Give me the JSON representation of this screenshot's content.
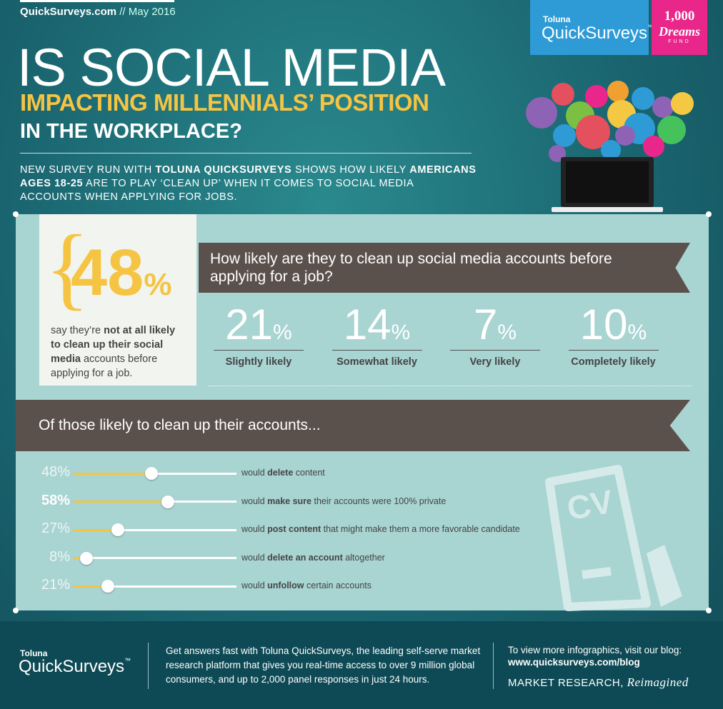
{
  "header": {
    "site": "QuickSurveys.com",
    "date": "// May 2016",
    "logo_brand": "Toluna",
    "logo_product": "QuickSurveys",
    "logo_tm": "™",
    "fund_number": "1,000",
    "fund_name": "Dreams",
    "fund_word": "FUND"
  },
  "title": {
    "line1": "IS SOCIAL MEDIA",
    "line2": "IMPACTING MILLENNIALS’ POSITION",
    "line3": "IN THE WORKPLACE?"
  },
  "intro": [
    {
      "text": "NEW SURVEY RUN WITH ",
      "bold": false
    },
    {
      "text": "TOLUNA QUICKSURVEYS",
      "bold": true
    },
    {
      "text": " SHOWS HOW LIKELY ",
      "bold": false
    },
    {
      "text": "AMERICANS AGES 18-25",
      "bold": true
    },
    {
      "text": " ARE TO PLAY ‘CLEAN UP’ WHEN IT COMES TO SOCIAL MEDIA ACCOUNTS WHEN APPLYING FOR JOBS.",
      "bold": false
    }
  ],
  "highlight": {
    "value": 48,
    "unit": "%",
    "text": [
      {
        "text": "say they’re ",
        "bold": false
      },
      {
        "text": "not at all likely to clean up their social media",
        "bold": true
      },
      {
        "text": " accounts before applying for a job.",
        "bold": false
      }
    ]
  },
  "question": "How likely are they to clean up social media accounts before applying for a job?",
  "stats": [
    {
      "value": 21,
      "unit": "%",
      "label": "Slightly likely"
    },
    {
      "value": 14,
      "unit": "%",
      "label": "Somewhat likely"
    },
    {
      "value": 7,
      "unit": "%",
      "label": "Very likely"
    },
    {
      "value": 10,
      "unit": "%",
      "label": "Completely likely"
    }
  ],
  "subheading": "Of those likely to clean up their accounts...",
  "actions": [
    {
      "value": 48,
      "label": "48%",
      "emphasis": false,
      "text": [
        {
          "text": "would ",
          "bold": false
        },
        {
          "text": "delete",
          "bold": true
        },
        {
          "text": " content",
          "bold": false
        }
      ]
    },
    {
      "value": 58,
      "label": "58%",
      "emphasis": true,
      "text": [
        {
          "text": "would ",
          "bold": false
        },
        {
          "text": "make sure",
          "bold": true
        },
        {
          "text": " their accounts were 100% private",
          "bold": false
        }
      ]
    },
    {
      "value": 27,
      "label": "27%",
      "emphasis": false,
      "text": [
        {
          "text": "would ",
          "bold": false
        },
        {
          "text": "post content",
          "bold": true
        },
        {
          "text": " that might make them a more favorable candidate",
          "bold": false
        }
      ]
    },
    {
      "value": 8,
      "label": "8%",
      "emphasis": false,
      "text": [
        {
          "text": "would ",
          "bold": false
        },
        {
          "text": "delete an account",
          "bold": true
        },
        {
          "text": " altogether",
          "bold": false
        }
      ]
    },
    {
      "value": 21,
      "label": "21%",
      "emphasis": false,
      "text": [
        {
          "text": "would ",
          "bold": false
        },
        {
          "text": "unfollow",
          "bold": true
        },
        {
          "text": " certain accounts",
          "bold": false
        }
      ]
    }
  ],
  "cv_icon": "CV",
  "footer": {
    "logo_brand": "Toluna",
    "logo_product": "QuickSurveys",
    "logo_tm": "™",
    "about": "Get answers fast with Toluna QuickSurveys, the leading self-serve market research platform that gives you real-time access to over 9 million global consumers, and up to 2,000 panel responses in just 24 hours.",
    "blog_intro": "To view more infographics, visit our blog:",
    "blog_url": "www.quicksurveys.com/blog",
    "tagline": "MARKET RESEARCH,",
    "tagline_script": "Reimagined"
  }
}
